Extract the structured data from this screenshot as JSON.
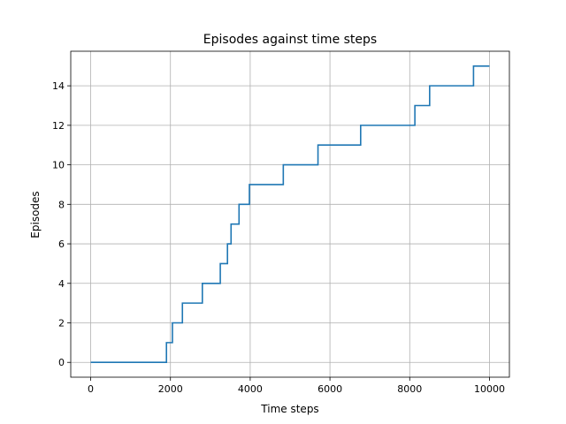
{
  "chart_data": {
    "type": "line",
    "title": "Episodes against time steps",
    "xlabel": "Time steps",
    "ylabel": "Episodes",
    "xlim": [
      -500,
      10500
    ],
    "ylim": [
      -0.75,
      15.75
    ],
    "xticks": [
      0,
      2000,
      4000,
      6000,
      8000,
      10000
    ],
    "yticks": [
      0,
      2,
      4,
      6,
      8,
      10,
      12,
      14
    ],
    "grid": true,
    "step": "post",
    "line_color": "#1f77b4",
    "series": [
      {
        "x": [
          0,
          1900,
          2050,
          2300,
          2800,
          3250,
          3430,
          3520,
          3720,
          3980,
          4830,
          5700,
          6770,
          8130,
          8500,
          9600,
          10000
        ],
        "y": [
          0,
          1,
          2,
          3,
          4,
          5,
          6,
          7,
          8,
          9,
          10,
          11,
          12,
          13,
          14,
          15,
          15
        ]
      }
    ]
  }
}
